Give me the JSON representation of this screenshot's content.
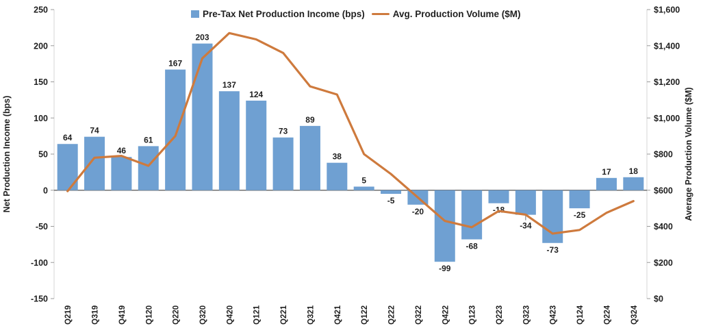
{
  "chart_data": {
    "type": "bar",
    "subtype": "combo-bar-line-dual-axis",
    "title": "",
    "grid": false,
    "legend_position": "top",
    "categories": [
      "Q219",
      "Q319",
      "Q419",
      "Q120",
      "Q220",
      "Q320",
      "Q420",
      "Q121",
      "Q221",
      "Q321",
      "Q421",
      "Q122",
      "Q222",
      "Q322",
      "Q422",
      "Q123",
      "Q223",
      "Q323",
      "Q423",
      "Q124",
      "Q224",
      "Q324"
    ],
    "series": [
      {
        "name": "Pre-Tax Net Production Income (bps)",
        "type": "bar",
        "axis": "left",
        "color": "#6FA0D2",
        "values": [
          64,
          74,
          46,
          61,
          167,
          203,
          137,
          124,
          73,
          89,
          38,
          5,
          -5,
          -20,
          -99,
          -68,
          -18,
          -34,
          -73,
          -25,
          17,
          18
        ]
      },
      {
        "name": "Avg. Production Volume ($M)",
        "type": "line",
        "axis": "right",
        "color": "#CE7A3D",
        "values": [
          595,
          780,
          790,
          735,
          900,
          1330,
          1470,
          1435,
          1360,
          1175,
          1130,
          800,
          690,
          560,
          430,
          395,
          485,
          465,
          360,
          380,
          475,
          540
        ]
      }
    ],
    "left_axis": {
      "title": "Net Production Income (bps)",
      "min": -150,
      "max": 250,
      "step": 50,
      "tick_labels": [
        "250",
        "200",
        "150",
        "100",
        "50",
        "0",
        "-50",
        "-100",
        "-150"
      ]
    },
    "right_axis": {
      "title": "Average Production Volume ($M)",
      "min": 0,
      "max": 1600,
      "step": 200,
      "tick_labels": [
        "$1,600",
        "$1,400",
        "$1,200",
        "$1,000",
        "$800",
        "$600",
        "$400",
        "$200",
        "$0"
      ]
    },
    "label_leader_category_index": 17,
    "colors": {
      "bar_fill": "#6FA0D2",
      "line_stroke": "#CE7A3D",
      "text": "#1f1f1f",
      "zero_axis_line": "#6e6e6e",
      "axis_line": "#d6d6d6",
      "tick_mark": "#9a9a9a",
      "background": "#ffffff"
    }
  }
}
